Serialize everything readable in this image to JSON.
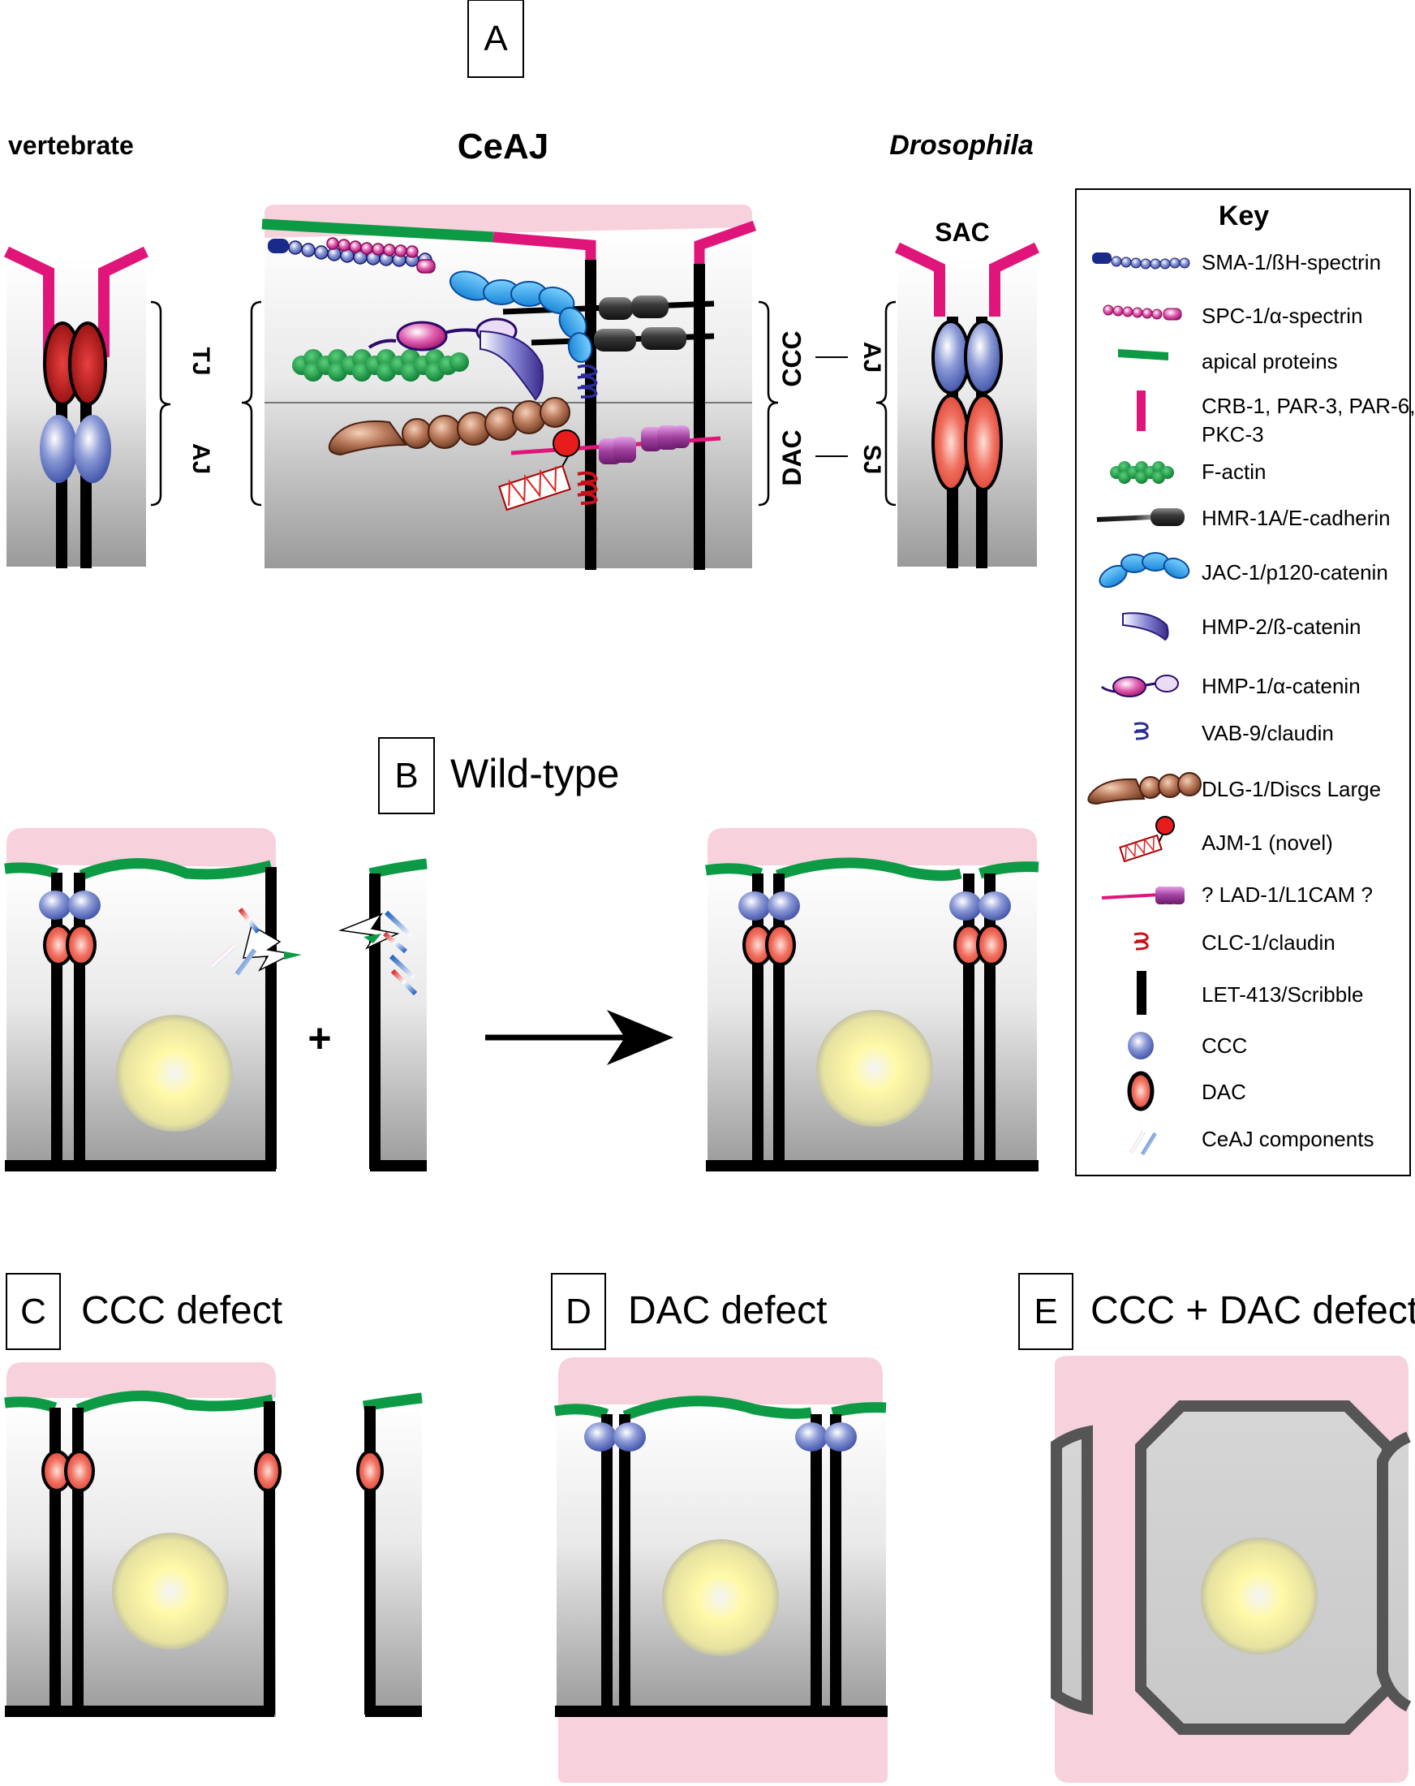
{
  "panels": {
    "A": {
      "letter": "A",
      "vertebrate": {
        "title": "vertebrate",
        "upper": "TJ",
        "lower": "AJ"
      },
      "ceaj": {
        "title": "CeAJ",
        "upper": "CCC",
        "lower": "DAC"
      },
      "drosophila": {
        "title": "Drosophila",
        "top": "SAC",
        "upper": "AJ",
        "lower": "SJ"
      }
    },
    "B": {
      "letter": "B",
      "title": "Wild-type",
      "plus": "+"
    },
    "C": {
      "letter": "C",
      "title": "CCC defect"
    },
    "D": {
      "letter": "D",
      "title": "DAC defect"
    },
    "E": {
      "letter": "E",
      "title": "CCC + DAC defect"
    }
  },
  "key": {
    "title": "Key",
    "items": [
      {
        "label": "SMA-1/ßH-spectrin",
        "icon": "beta-spectrin-icon"
      },
      {
        "label": "SPC-1/α-spectrin",
        "icon": "alpha-spectrin-icon"
      },
      {
        "label": "apical proteins",
        "icon": "apical-proteins-icon"
      },
      {
        "label": "CRB-1, PAR-3, PAR-6,",
        "label2": "PKC-3",
        "icon": "crb-par-pkc-icon"
      },
      {
        "label": "F-actin",
        "icon": "f-actin-icon"
      },
      {
        "label": "HMR-1A/E-cadherin",
        "icon": "cadherin-icon"
      },
      {
        "label": "JAC-1/p120-catenin",
        "icon": "p120-catenin-icon"
      },
      {
        "label": "HMP-2/ß-catenin",
        "icon": "beta-catenin-icon"
      },
      {
        "label": "HMP-1/α-catenin",
        "icon": "alpha-catenin-icon"
      },
      {
        "label": "VAB-9/claudin",
        "icon": "vab9-claudin-icon"
      },
      {
        "label": "DLG-1/Discs Large",
        "icon": "dlg1-icon"
      },
      {
        "label": "AJM-1 (novel)",
        "icon": "ajm1-icon"
      },
      {
        "label": "? LAD-1/L1CAM ?",
        "icon": "lad1-icon"
      },
      {
        "label": "CLC-1/claudin",
        "icon": "clc1-claudin-icon"
      },
      {
        "label": "LET-413/Scribble",
        "icon": "scribble-icon"
      },
      {
        "label": "CCC",
        "icon": "ccc-icon"
      },
      {
        "label": "DAC",
        "icon": "dac-icon"
      },
      {
        "label": "CeAJ components",
        "icon": "ceaj-components-icon"
      }
    ]
  },
  "colors": {
    "apical": "#f7d2dc",
    "magenta": "#e0157a",
    "green": "#0c9a45",
    "ccc_blue": "#5a6fc0",
    "dac_red": "#e85040",
    "nucleus": "#fff7a0"
  }
}
